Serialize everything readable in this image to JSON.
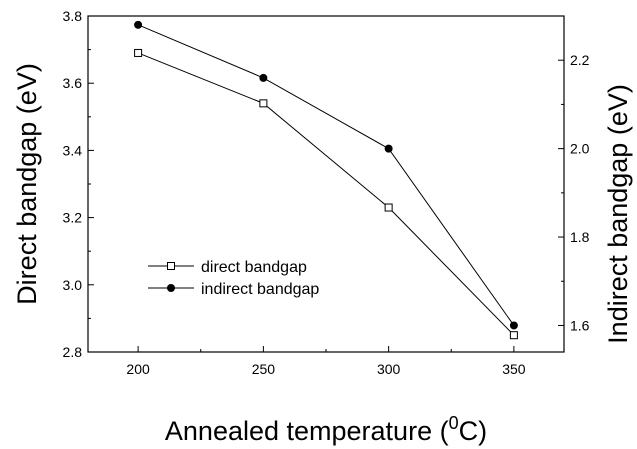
{
  "chart_data": {
    "type": "line",
    "title": "",
    "xlabel": "Annealed temperature (",
    "xlabel_superscript": "0",
    "xlabel_suffix": "C)",
    "ylabel_left": "Direct bandgap (eV)",
    "ylabel_right": "Indirect bandgap (eV)",
    "x": [
      200,
      250,
      300,
      350
    ],
    "xlim": [
      180,
      370
    ],
    "xticks": [
      "200",
      "250",
      "300",
      "350"
    ],
    "ylim_left": [
      2.8,
      3.8
    ],
    "yticks_left": [
      "2.8",
      "3.0",
      "3.2",
      "3.4",
      "3.6",
      "3.8"
    ],
    "ylim_right": [
      1.54,
      2.3
    ],
    "yticks_right": [
      "1.6",
      "1.8",
      "2.0",
      "2.2"
    ],
    "grid": false,
    "legend_position": "center-left",
    "series": [
      {
        "name": "direct bandgap",
        "axis": "left",
        "marker": "open-square",
        "color": "#000000",
        "values": [
          3.69,
          3.54,
          3.23,
          2.85
        ]
      },
      {
        "name": "indirect bandgap",
        "axis": "right",
        "marker": "filled-circle",
        "color": "#000000",
        "values": [
          2.28,
          2.16,
          2.0,
          1.6
        ]
      }
    ]
  }
}
